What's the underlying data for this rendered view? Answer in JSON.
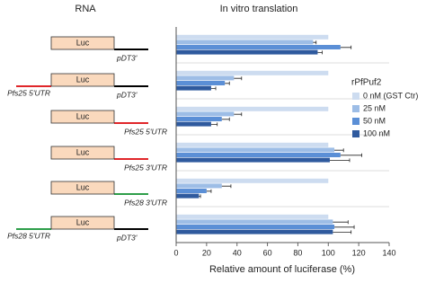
{
  "rna_header": "RNA",
  "constructs": [
    {
      "box": "Luc",
      "right": "pDT3'"
    },
    {
      "box": "Luc",
      "left": "Pfs25 5'UTR",
      "right": "pDT3'"
    },
    {
      "box": "Luc",
      "below": "Pfs25 5'UTR"
    },
    {
      "box": "Luc",
      "below": "Pfs25 3'UTR"
    },
    {
      "box": "Luc",
      "below": "Pfs28 3'UTR"
    },
    {
      "box": "Luc",
      "left": "Pfs28 5'UTR",
      "right": "pDT3'"
    }
  ],
  "chart_data": {
    "type": "hbar",
    "title": "In vitro translation",
    "x_label": "Relative amount of luciferase (%)",
    "categories": [
      null,
      null,
      null,
      null,
      null,
      null
    ],
    "legend_title": "rPfPuf2",
    "series": [
      {
        "name": "0 nM (GST Ctr)",
        "color": "#cddcf0",
        "values": [
          100,
          100,
          100,
          100,
          100,
          100
        ]
      },
      {
        "name": "25 nM",
        "color": "#9dbde6",
        "values": [
          90,
          38,
          38,
          104,
          30,
          103
        ],
        "errors": [
          2,
          5,
          5,
          6,
          6,
          10
        ]
      },
      {
        "name": "50 nM",
        "color": "#5b8fd6",
        "values": [
          108,
          32,
          30,
          108,
          20,
          104
        ],
        "errors": [
          7,
          3,
          5,
          14,
          3,
          13
        ]
      },
      {
        "name": "100 nM",
        "color": "#2f5a9e",
        "values": [
          93,
          23,
          23,
          101,
          15,
          103
        ],
        "errors": [
          3,
          3,
          4,
          13,
          1,
          12
        ]
      }
    ],
    "xlim": [
      0,
      140
    ],
    "xticks": [
      0,
      20,
      40,
      60,
      80,
      100,
      120,
      140
    ]
  }
}
